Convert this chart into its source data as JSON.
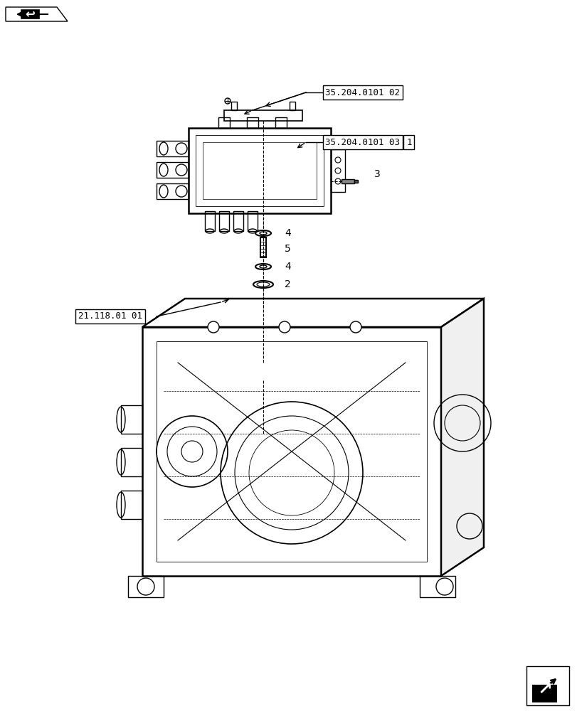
{
  "bg_color": "#ffffff",
  "line_color": "#000000",
  "label_box_color": "#ffffff",
  "labels": {
    "ref1": "35.204.0101 02",
    "ref2": "35.204.0101 03",
    "ref3": "21.118.01 01",
    "num1": "1",
    "num2": "2",
    "num3": "3",
    "num4": "4",
    "num5": "5"
  },
  "figsize": [
    8.12,
    10.0
  ],
  "dpi": 100
}
